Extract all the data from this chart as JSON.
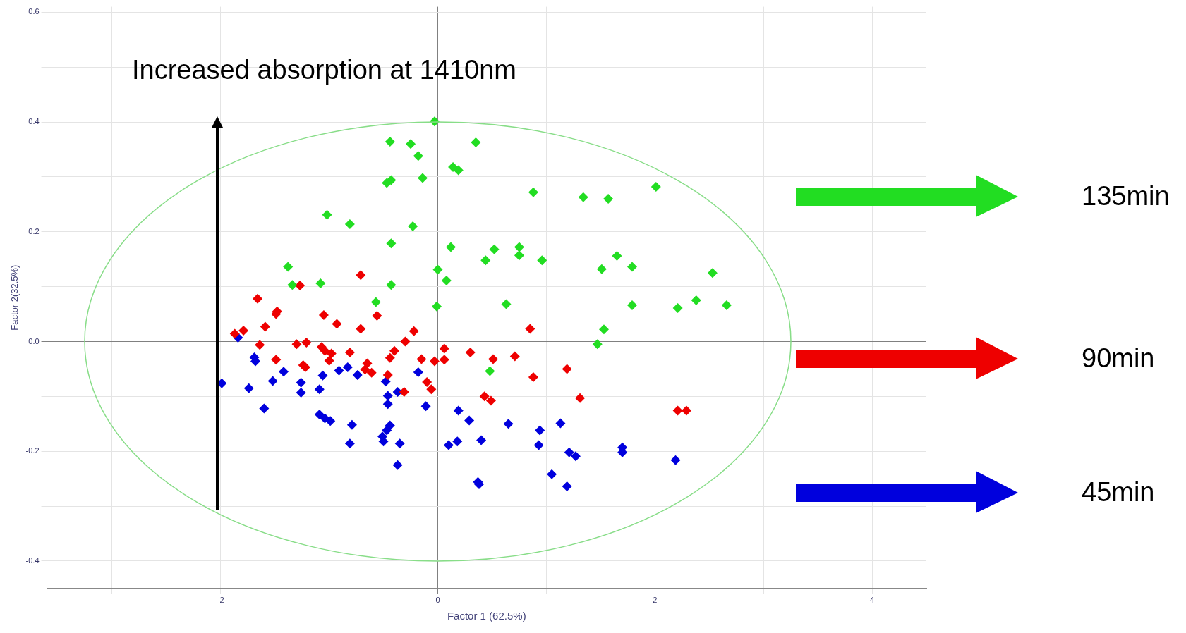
{
  "chart_data": {
    "type": "scatter",
    "xlabel": "Factor 1 (62.5%)",
    "ylabel": "Factor 2(32.5%)",
    "annotations": [
      "Increased absorption at 1410nm"
    ],
    "xlim": [
      -3.6,
      4.5
    ],
    "ylim": [
      -0.45,
      0.61
    ],
    "xticks": [
      {
        "value": -3,
        "label": null
      },
      -2,
      {
        "value": -1,
        "label": null
      },
      {
        "value": 0,
        "label": "0"
      },
      {
        "value": 1,
        "label": null
      },
      2,
      {
        "value": 3,
        "label": null
      },
      4
    ],
    "yticks": [
      -0.4,
      {
        "value": -0.3,
        "label": null
      },
      -0.2,
      {
        "value": -0.1,
        "label": null
      },
      {
        "value": 0,
        "label": "0.0"
      },
      {
        "value": 0.1,
        "label": null
      },
      0.2,
      {
        "value": 0.3,
        "label": null
      },
      0.4,
      {
        "value": 0.5,
        "label": null
      },
      0.6
    ],
    "grid": true,
    "legend": "right",
    "marker": "diamond",
    "series": [
      {
        "name": "135min",
        "color": "#22dd22",
        "x": [
          -0.03,
          -0.44,
          -0.25,
          -0.18,
          0.35,
          0.14,
          0.19,
          -0.47,
          -0.43,
          -0.14,
          -1.02,
          -0.81,
          -0.23,
          -0.43,
          0.12,
          0.44,
          -1.38,
          -1.34,
          -1.08,
          -0.43,
          0,
          0.08,
          -0.57,
          -0.01,
          2.01,
          0.88,
          1.34,
          1.57,
          0.52,
          0.75,
          0.75,
          0.96,
          1.65,
          1.51,
          1.79,
          2.53,
          0.63,
          1.79,
          2.21,
          2.38,
          2.66,
          1.53,
          1.47,
          0.48
        ],
        "values": [
          0.401,
          0.364,
          0.36,
          0.338,
          0.363,
          0.318,
          0.312,
          0.289,
          0.294,
          0.298,
          0.231,
          0.214,
          0.21,
          0.179,
          0.172,
          0.148,
          0.136,
          0.103,
          0.106,
          0.103,
          0.131,
          0.111,
          0.072,
          0.064,
          0.282,
          0.272,
          0.263,
          0.26,
          0.168,
          0.172,
          0.157,
          0.148,
          0.156,
          0.132,
          0.136,
          0.125,
          0.068,
          0.066,
          0.061,
          0.075,
          0.066,
          0.022,
          -0.005,
          -0.054
        ]
      },
      {
        "name": "90min",
        "color": "#ee0000",
        "x": [
          -0.71,
          -1.66,
          -1.48,
          -1.49,
          -1.05,
          -0.93,
          -1.59,
          -0.71,
          -0.56,
          -0.22,
          -1.27,
          -1.79,
          -1.87,
          -1.64,
          -1.3,
          -1.21,
          -1.07,
          -1.04,
          -0.98,
          -1.0,
          -0.81,
          -0.3,
          -0.4,
          -0.44,
          -0.15,
          -0.03,
          0.06,
          -1.49,
          -1.24,
          -1.22,
          -0.65,
          -0.61,
          -0.67,
          -0.46,
          -0.1,
          -0.06,
          -0.31,
          0.06,
          0.3,
          0.51,
          0.71,
          0.85,
          0.88,
          1.19,
          1.31,
          0.43,
          0.49,
          2.21,
          2.29
        ],
        "values": [
          0.121,
          0.078,
          0.055,
          0.05,
          0.048,
          0.032,
          0.027,
          0.023,
          0.047,
          0.019,
          0.102,
          0.02,
          0.014,
          -0.006,
          -0.005,
          -0.002,
          -0.01,
          -0.017,
          -0.022,
          -0.035,
          -0.02,
          0,
          -0.017,
          -0.03,
          -0.032,
          -0.036,
          -0.013,
          -0.033,
          -0.043,
          -0.047,
          -0.04,
          -0.057,
          -0.051,
          -0.061,
          -0.074,
          -0.087,
          -0.092,
          -0.033,
          -0.02,
          -0.032,
          -0.027,
          0.023,
          -0.065,
          -0.05,
          -0.103,
          -0.1,
          -0.108,
          -0.126,
          -0.126
        ]
      },
      {
        "name": "45min",
        "color": "#0000dd",
        "x": [
          -1.84,
          -1.69,
          -1.68,
          -1.99,
          -1.74,
          -1.42,
          -1.52,
          -1.6,
          -1.26,
          -1.26,
          -1.06,
          -1.09,
          -0.91,
          -0.83,
          -0.74,
          -1.09,
          -1.04,
          -0.99,
          -0.79,
          -0.81,
          -0.48,
          -0.46,
          -0.37,
          -0.46,
          -0.44,
          -0.47,
          -0.51,
          -0.5,
          -0.35,
          -0.37,
          -0.18,
          -0.11,
          0.19,
          0.29,
          0.1,
          0.18,
          0.4,
          0.37,
          0.38,
          0.65,
          0.94,
          0.93,
          1.13,
          1.21,
          1.27,
          1.05,
          1.19,
          1.7,
          1.7,
          2.19
        ],
        "values": [
          0.007,
          -0.029,
          -0.036,
          -0.076,
          -0.085,
          -0.055,
          -0.072,
          -0.122,
          -0.075,
          -0.093,
          -0.062,
          -0.087,
          -0.053,
          -0.047,
          -0.061,
          -0.133,
          -0.14,
          -0.145,
          -0.152,
          -0.186,
          -0.073,
          -0.099,
          -0.092,
          -0.114,
          -0.153,
          -0.162,
          -0.173,
          -0.182,
          -0.186,
          -0.225,
          -0.056,
          -0.118,
          -0.126,
          -0.144,
          -0.189,
          -0.182,
          -0.18,
          -0.256,
          -0.26,
          -0.15,
          -0.162,
          -0.189,
          -0.149,
          -0.202,
          -0.209,
          -0.242,
          -0.264,
          -0.193,
          -0.202,
          -0.216
        ]
      }
    ]
  }
}
